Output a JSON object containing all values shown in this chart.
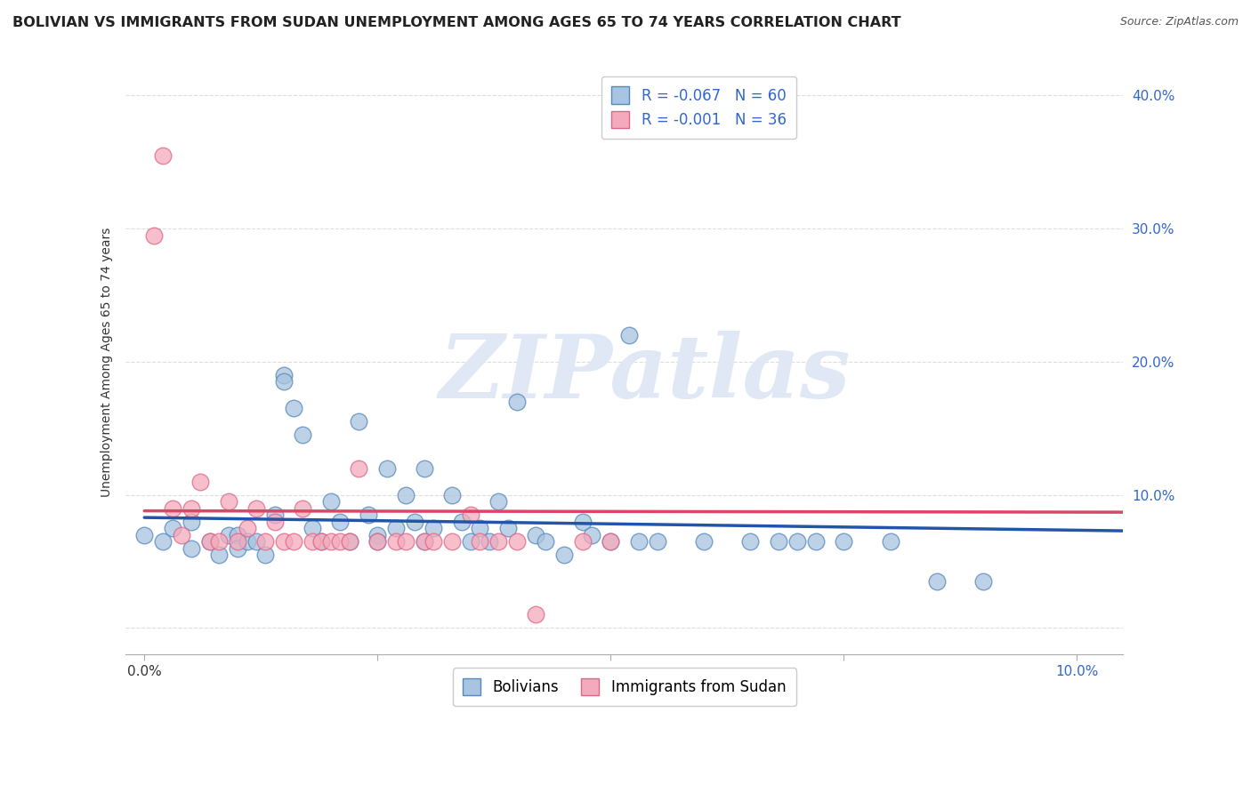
{
  "title": "BOLIVIAN VS IMMIGRANTS FROM SUDAN UNEMPLOYMENT AMONG AGES 65 TO 74 YEARS CORRELATION CHART",
  "source": "Source: ZipAtlas.com",
  "ylabel": "Unemployment Among Ages 65 to 74 years",
  "ylim": [
    -0.02,
    0.42
  ],
  "xlim": [
    -0.002,
    0.105
  ],
  "ytick_vals": [
    0.0,
    0.1,
    0.2,
    0.3,
    0.4
  ],
  "ytick_labels": [
    "",
    "10.0%",
    "20.0%",
    "30.0%",
    "40.0%"
  ],
  "xtick_vals": [
    0.0,
    0.025,
    0.05,
    0.075,
    0.1
  ],
  "xtick_labels": [
    "0.0%",
    "",
    "",
    "",
    "10.0%"
  ],
  "legend_label1": "R = -0.067   N = 60",
  "legend_label2": "R = -0.001   N = 36",
  "legend_sublabel1": "Bolivians",
  "legend_sublabel2": "Immigrants from Sudan",
  "blue_fill_color": "#A8C4E0",
  "blue_edge_color": "#5588BB",
  "pink_fill_color": "#F5AABB",
  "pink_edge_color": "#DD6688",
  "blue_line_color": "#2255AA",
  "pink_line_color": "#DD4466",
  "background_color": "#FFFFFF",
  "grid_color": "#DDDDDD",
  "watermark_color": "#E0E8F5",
  "blue_scatter_x": [
    0.0,
    0.002,
    0.003,
    0.005,
    0.005,
    0.007,
    0.008,
    0.009,
    0.01,
    0.01,
    0.011,
    0.012,
    0.013,
    0.014,
    0.015,
    0.015,
    0.016,
    0.017,
    0.018,
    0.019,
    0.02,
    0.021,
    0.022,
    0.023,
    0.024,
    0.025,
    0.025,
    0.026,
    0.027,
    0.028,
    0.029,
    0.03,
    0.03,
    0.031,
    0.033,
    0.034,
    0.035,
    0.036,
    0.037,
    0.038,
    0.039,
    0.04,
    0.042,
    0.043,
    0.045,
    0.047,
    0.048,
    0.05,
    0.052,
    0.053,
    0.055,
    0.06,
    0.065,
    0.068,
    0.07,
    0.072,
    0.075,
    0.08,
    0.085,
    0.09
  ],
  "blue_scatter_y": [
    0.07,
    0.065,
    0.075,
    0.06,
    0.08,
    0.065,
    0.055,
    0.07,
    0.07,
    0.06,
    0.065,
    0.065,
    0.055,
    0.085,
    0.19,
    0.185,
    0.165,
    0.145,
    0.075,
    0.065,
    0.095,
    0.08,
    0.065,
    0.155,
    0.085,
    0.07,
    0.065,
    0.12,
    0.075,
    0.1,
    0.08,
    0.065,
    0.12,
    0.075,
    0.1,
    0.08,
    0.065,
    0.075,
    0.065,
    0.095,
    0.075,
    0.17,
    0.07,
    0.065,
    0.055,
    0.08,
    0.07,
    0.065,
    0.22,
    0.065,
    0.065,
    0.065,
    0.065,
    0.065,
    0.065,
    0.065,
    0.065,
    0.065,
    0.035,
    0.035
  ],
  "pink_scatter_x": [
    0.001,
    0.002,
    0.003,
    0.004,
    0.005,
    0.006,
    0.007,
    0.008,
    0.009,
    0.01,
    0.011,
    0.012,
    0.013,
    0.014,
    0.015,
    0.016,
    0.017,
    0.018,
    0.019,
    0.02,
    0.021,
    0.022,
    0.023,
    0.025,
    0.027,
    0.028,
    0.03,
    0.031,
    0.033,
    0.035,
    0.036,
    0.038,
    0.04,
    0.042,
    0.047,
    0.05
  ],
  "pink_scatter_y": [
    0.295,
    0.355,
    0.09,
    0.07,
    0.09,
    0.11,
    0.065,
    0.065,
    0.095,
    0.065,
    0.075,
    0.09,
    0.065,
    0.08,
    0.065,
    0.065,
    0.09,
    0.065,
    0.065,
    0.065,
    0.065,
    0.065,
    0.12,
    0.065,
    0.065,
    0.065,
    0.065,
    0.065,
    0.065,
    0.085,
    0.065,
    0.065,
    0.065,
    0.01,
    0.065,
    0.065
  ],
  "blue_trend_x": [
    0.0,
    0.105
  ],
  "blue_trend_y_start": 0.083,
  "blue_trend_y_end": 0.073,
  "pink_trend_x": [
    0.0,
    0.105
  ],
  "pink_trend_y_start": 0.088,
  "pink_trend_y_end": 0.087,
  "title_fontsize": 11.5,
  "source_fontsize": 9,
  "axis_label_fontsize": 10,
  "tick_label_fontsize": 11,
  "legend_fontsize": 12,
  "scatter_size": 180
}
